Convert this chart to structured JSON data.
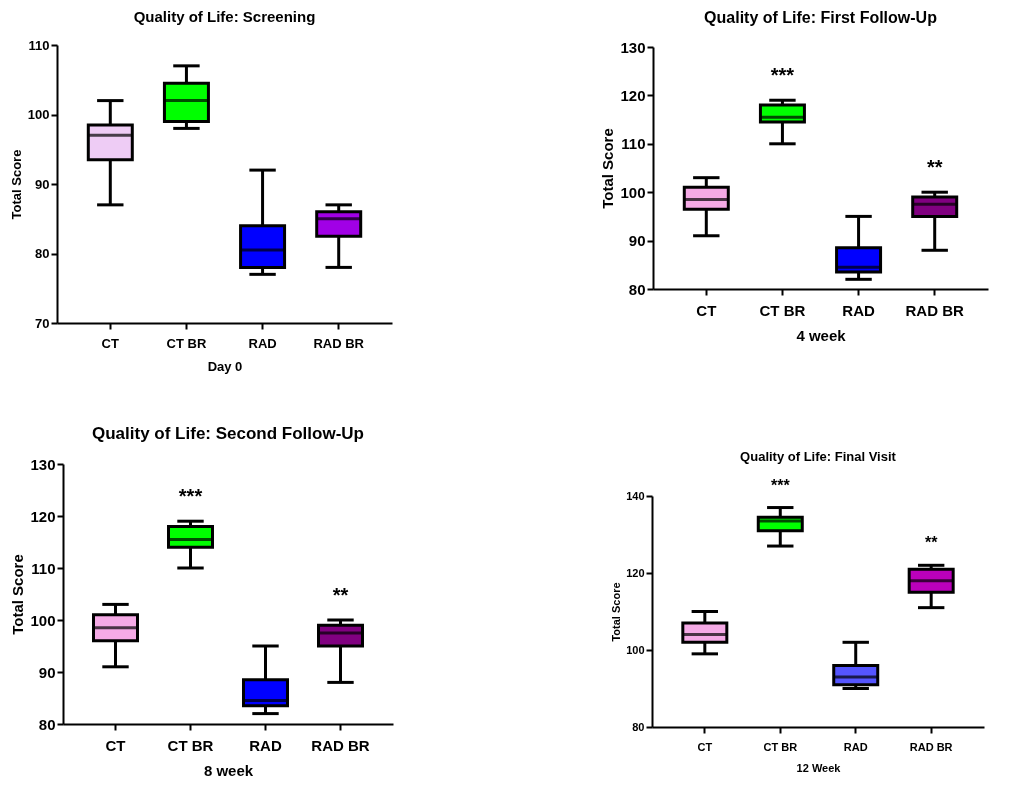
{
  "chart_data": [
    {
      "type": "box",
      "title": "Quality of Life: Screening",
      "xlabel": "Day 0",
      "ylabel": "Total Score",
      "categories": [
        "CT",
        "CT BR",
        "RAD",
        "RAD BR"
      ],
      "colors": [
        "#eeccf5",
        "#00ff00",
        "#0000ff",
        "#a100e6"
      ],
      "ylim": [
        70,
        110
      ],
      "yticks": [
        70,
        80,
        90,
        100,
        110
      ],
      "boxes": [
        {
          "low": 87,
          "q1": 93.5,
          "median": 97,
          "q3": 98.5,
          "high": 102
        },
        {
          "low": 98,
          "q1": 99,
          "median": 102,
          "q3": 104.5,
          "high": 107
        },
        {
          "low": 77,
          "q1": 78,
          "median": 80.5,
          "q3": 84,
          "high": 92
        },
        {
          "low": 78,
          "q1": 82.5,
          "median": 85,
          "q3": 86,
          "high": 87
        }
      ]
    },
    {
      "type": "box",
      "title": "Quality of Life: First Follow-Up",
      "xlabel": "4 week",
      "ylabel": "Total Score",
      "categories": [
        "CT",
        "CT BR",
        "RAD",
        "RAD BR"
      ],
      "colors": [
        "#f5aae6",
        "#00ff00",
        "#0000ff",
        "#800080"
      ],
      "ylim": [
        80,
        130
      ],
      "yticks": [
        80,
        90,
        100,
        110,
        120,
        130
      ],
      "boxes": [
        {
          "low": 91,
          "q1": 96.5,
          "median": 98.5,
          "q3": 101,
          "high": 103
        },
        {
          "low": 110,
          "q1": 114.5,
          "median": 115.5,
          "q3": 118,
          "high": 119
        },
        {
          "low": 82,
          "q1": 83.5,
          "median": 84.5,
          "q3": 88.5,
          "high": 95
        },
        {
          "low": 88,
          "q1": 95,
          "median": 97.5,
          "q3": 99,
          "high": 100
        }
      ],
      "annotations": [
        "***",
        "**"
      ]
    },
    {
      "type": "box",
      "title": "Quality of Life: Second Follow-Up",
      "xlabel": "8 week",
      "ylabel": "Total Score",
      "categories": [
        "CT",
        "CT BR",
        "RAD",
        "RAD BR"
      ],
      "colors": [
        "#f5aae6",
        "#00ff00",
        "#0000ff",
        "#800080"
      ],
      "ylim": [
        80,
        130
      ],
      "yticks": [
        80,
        90,
        100,
        110,
        120,
        130
      ],
      "boxes": [
        {
          "low": 91,
          "q1": 96,
          "median": 98.5,
          "q3": 101,
          "high": 103
        },
        {
          "low": 110,
          "q1": 114,
          "median": 115.5,
          "q3": 118,
          "high": 119
        },
        {
          "low": 82,
          "q1": 83.5,
          "median": 84.5,
          "q3": 88.5,
          "high": 95
        },
        {
          "low": 88,
          "q1": 95,
          "median": 97.5,
          "q3": 99,
          "high": 100
        }
      ],
      "annotations": [
        "***",
        "**"
      ]
    },
    {
      "type": "box",
      "title": "Quality of Life: Final Visit",
      "xlabel": "12 Week",
      "ylabel": "Total Score",
      "categories": [
        "CT",
        "CT BR",
        "RAD",
        "RAD BR"
      ],
      "colors": [
        "#f5aae6",
        "#00ff00",
        "#5555ff",
        "#bb00bb"
      ],
      "ylim": [
        80,
        140
      ],
      "yticks": [
        80,
        100,
        120,
        140
      ],
      "boxes": [
        {
          "low": 99,
          "q1": 102,
          "median": 104,
          "q3": 107,
          "high": 110
        },
        {
          "low": 127,
          "q1": 131,
          "median": 133.5,
          "q3": 134.5,
          "high": 137
        },
        {
          "low": 90,
          "q1": 91,
          "median": 93,
          "q3": 96,
          "high": 102
        },
        {
          "low": 111,
          "q1": 115,
          "median": 118,
          "q3": 121,
          "high": 122
        }
      ],
      "annotations": [
        "***",
        "**"
      ]
    }
  ]
}
